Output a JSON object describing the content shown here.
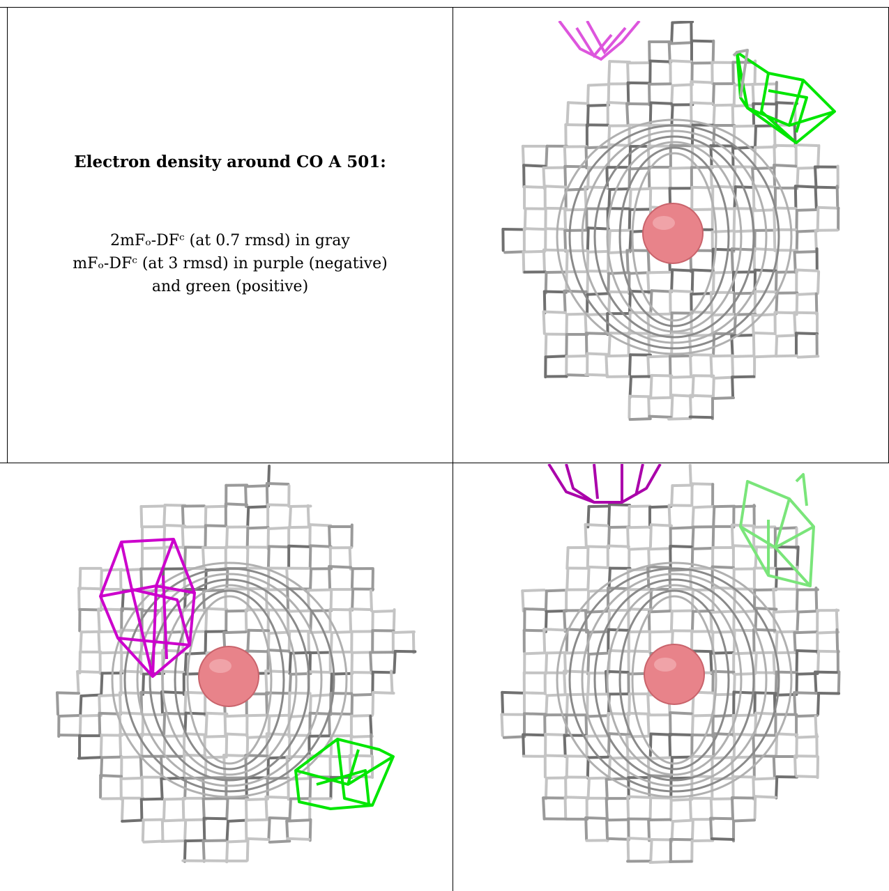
{
  "caption": {
    "title": "Electron density around CO A 501:",
    "line1": "2mFₒ-DFᶜ (at 0.7 rmsd) in gray",
    "line2": "mFₒ-DFᶜ (at 3 rmsd) in purple (negative)",
    "line3": "and green (positive)"
  },
  "colors": {
    "gray_mesh": "#b5b5b5",
    "dark_mesh": "#6a6a6a",
    "purple_mesh": "#cc00cc",
    "green_mesh": "#00e600",
    "atom": "#e8838a"
  },
  "panels": [
    {
      "name": "view-top-right",
      "atom": "CO"
    },
    {
      "name": "view-bottom-left",
      "atom": "CO"
    },
    {
      "name": "view-bottom-right",
      "atom": "CO"
    }
  ]
}
